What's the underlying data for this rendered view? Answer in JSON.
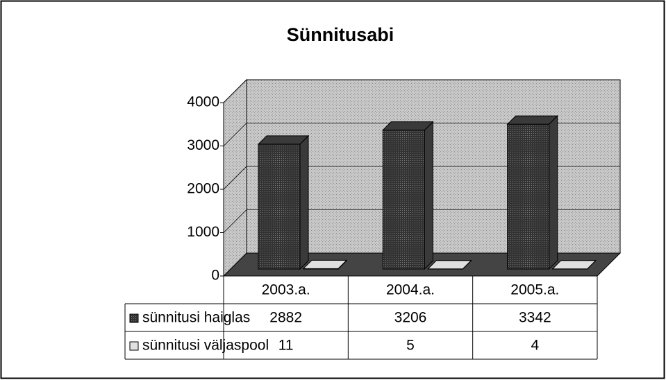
{
  "chart_data": {
    "type": "bar",
    "title": "Sünnitusabi",
    "categories": [
      "2003.a.",
      "2004.a.",
      "2005.a."
    ],
    "series": [
      {
        "name": "sünnitusi haiglas",
        "color": "#3a3a3a",
        "values": [
          2882,
          3206,
          3342
        ]
      },
      {
        "name": "sünnitusi väljaspool",
        "color": "#e0e0e0",
        "values": [
          11,
          5,
          4
        ]
      }
    ],
    "ylim": [
      0,
      4000
    ],
    "yticks": [
      0,
      1000,
      2000,
      3000,
      4000
    ],
    "grid": true
  }
}
